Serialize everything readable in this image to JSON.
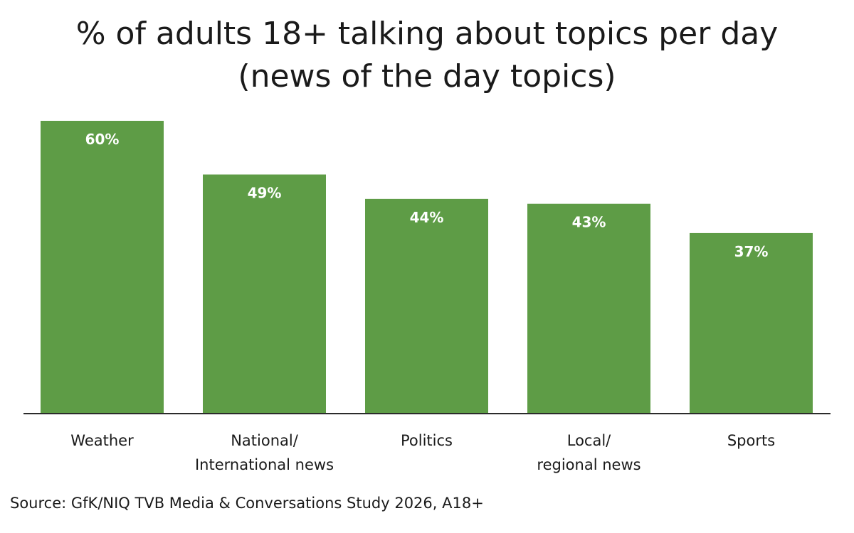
{
  "chart_data": {
    "type": "bar",
    "title_lines": [
      "% of adults 18+ talking about topics per day",
      "(news of the day topics)"
    ],
    "categories": [
      [
        "Weather"
      ],
      [
        "National/",
        "International news"
      ],
      [
        "Politics"
      ],
      [
        "Local/",
        "regional news"
      ],
      [
        "Sports"
      ]
    ],
    "values": [
      60,
      49,
      44,
      43,
      37
    ],
    "value_labels": [
      "60%",
      "49%",
      "44%",
      "43%",
      "37%"
    ],
    "ylim": [
      0,
      60
    ],
    "grid": false,
    "bar_color": "#5e9c46"
  },
  "source": "Source: GfK/NIQ TVB Media & Conversations Study 2026, A18+"
}
